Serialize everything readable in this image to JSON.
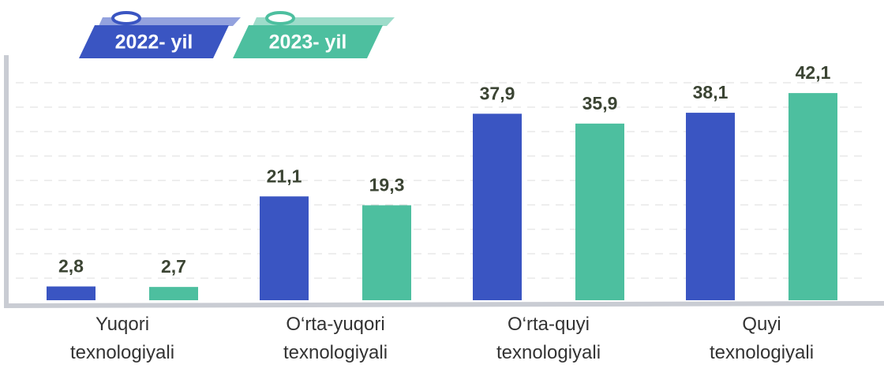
{
  "chart_data": {
    "type": "bar",
    "categories": [
      "Yuqori texnologiyali",
      "O‘rta-yuqori texnologiyali",
      "O‘rta-quyi texnologiyali",
      "Quyi texnologiyali"
    ],
    "series": [
      {
        "name": "2022- yil",
        "color": "#3a55c2",
        "values": [
          2.8,
          21.1,
          37.9,
          38.1
        ],
        "value_labels": [
          "2,8",
          "21,1",
          "37,9",
          "38,1"
        ]
      },
      {
        "name": "2023- yil",
        "color": "#4dbf9f",
        "values": [
          2.7,
          19.3,
          35.9,
          42.1
        ],
        "value_labels": [
          "2,7",
          "19,3",
          "35,9",
          "42,1"
        ]
      }
    ],
    "ylim": [
      0,
      45
    ]
  }
}
